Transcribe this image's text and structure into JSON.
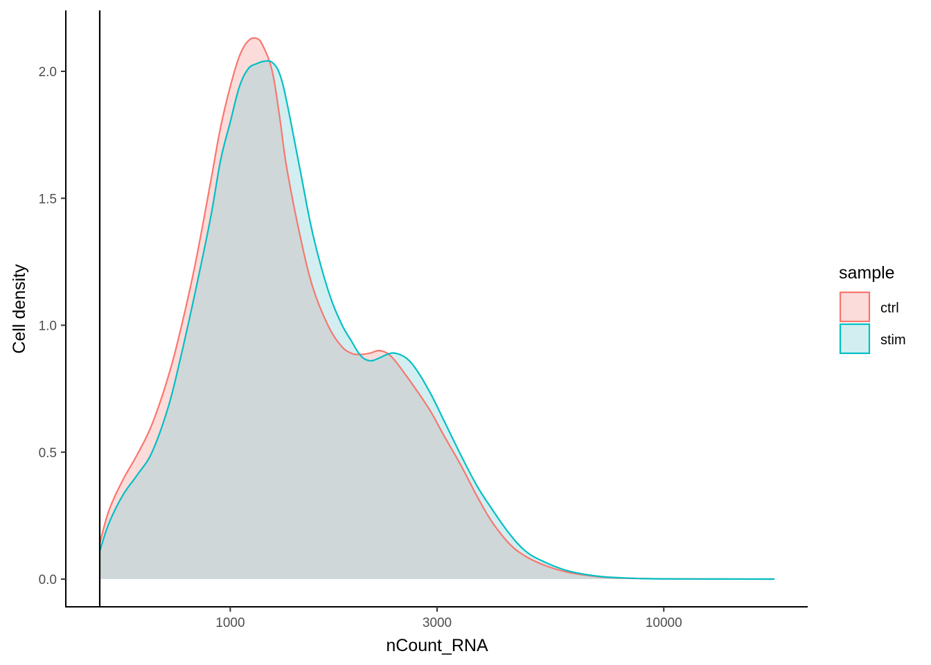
{
  "chart_data": {
    "type": "area",
    "title": "",
    "xlabel": "nCount_RNA",
    "ylabel": "Cell density",
    "x_scale": "log10",
    "xlim": [
      500,
      25000
    ],
    "ylim": [
      -0.1,
      2.24
    ],
    "x_ticks": [
      1000,
      3000,
      10000
    ],
    "x_tick_labels": [
      "1000",
      "3000",
      "10000"
    ],
    "y_ticks": [
      0,
      0.5,
      1,
      1.5,
      2
    ],
    "y_tick_labels": [
      "0.0",
      "0.5",
      "1.0",
      "1.5",
      "2.0"
    ],
    "vline_x": 500,
    "grid": false,
    "legend": {
      "title": "sample",
      "position": "right"
    },
    "series": [
      {
        "name": "ctrl",
        "color": "#F8766D",
        "fill": "#FBDCDB",
        "x": [
          500,
          525,
          565,
          610,
          660,
          720,
          770,
          830,
          900,
          950,
          1000,
          1050,
          1100,
          1150,
          1190,
          1250,
          1300,
          1350,
          1450,
          1550,
          1680,
          1800,
          1900,
          2000,
          2100,
          2200,
          2300,
          2400,
          2550,
          2700,
          2900,
          3100,
          3400,
          3700,
          4000,
          4400,
          4800,
          5300,
          6000,
          7000,
          8000,
          9000,
          10000,
          12000,
          15000,
          18000
        ],
        "y": [
          0.14,
          0.27,
          0.39,
          0.49,
          0.61,
          0.8,
          0.99,
          1.24,
          1.56,
          1.78,
          1.94,
          2.06,
          2.12,
          2.13,
          2.1,
          2.0,
          1.82,
          1.62,
          1.35,
          1.15,
          1.0,
          0.92,
          0.89,
          0.885,
          0.89,
          0.9,
          0.89,
          0.86,
          0.8,
          0.74,
          0.66,
          0.57,
          0.45,
          0.33,
          0.23,
          0.14,
          0.09,
          0.055,
          0.027,
          0.01,
          0.004,
          0.002,
          0.001,
          0.0005,
          0.0002,
          0.0001
        ]
      },
      {
        "name": "stim",
        "color": "#00BFC4",
        "fill": "#D3EEF0",
        "x": [
          500,
          525,
          565,
          610,
          660,
          720,
          770,
          830,
          900,
          950,
          1000,
          1050,
          1100,
          1150,
          1200,
          1250,
          1300,
          1350,
          1450,
          1550,
          1680,
          1800,
          1900,
          2000,
          2100,
          2200,
          2300,
          2400,
          2550,
          2700,
          2900,
          3100,
          3400,
          3700,
          4000,
          4400,
          4800,
          5300,
          6000,
          7000,
          8000,
          9000,
          10000,
          12000,
          15000,
          18000
        ],
        "y": [
          0.11,
          0.22,
          0.33,
          0.41,
          0.5,
          0.68,
          0.88,
          1.13,
          1.42,
          1.65,
          1.8,
          1.94,
          2.01,
          2.03,
          2.04,
          2.035,
          1.99,
          1.88,
          1.61,
          1.36,
          1.14,
          1.01,
          0.94,
          0.88,
          0.86,
          0.87,
          0.885,
          0.89,
          0.87,
          0.82,
          0.73,
          0.63,
          0.49,
          0.37,
          0.28,
          0.18,
          0.11,
          0.068,
          0.033,
          0.012,
          0.005,
          0.002,
          0.001,
          0.0005,
          0.0002,
          0.0001
        ]
      }
    ],
    "overlap_color": "#CFD7D9"
  }
}
